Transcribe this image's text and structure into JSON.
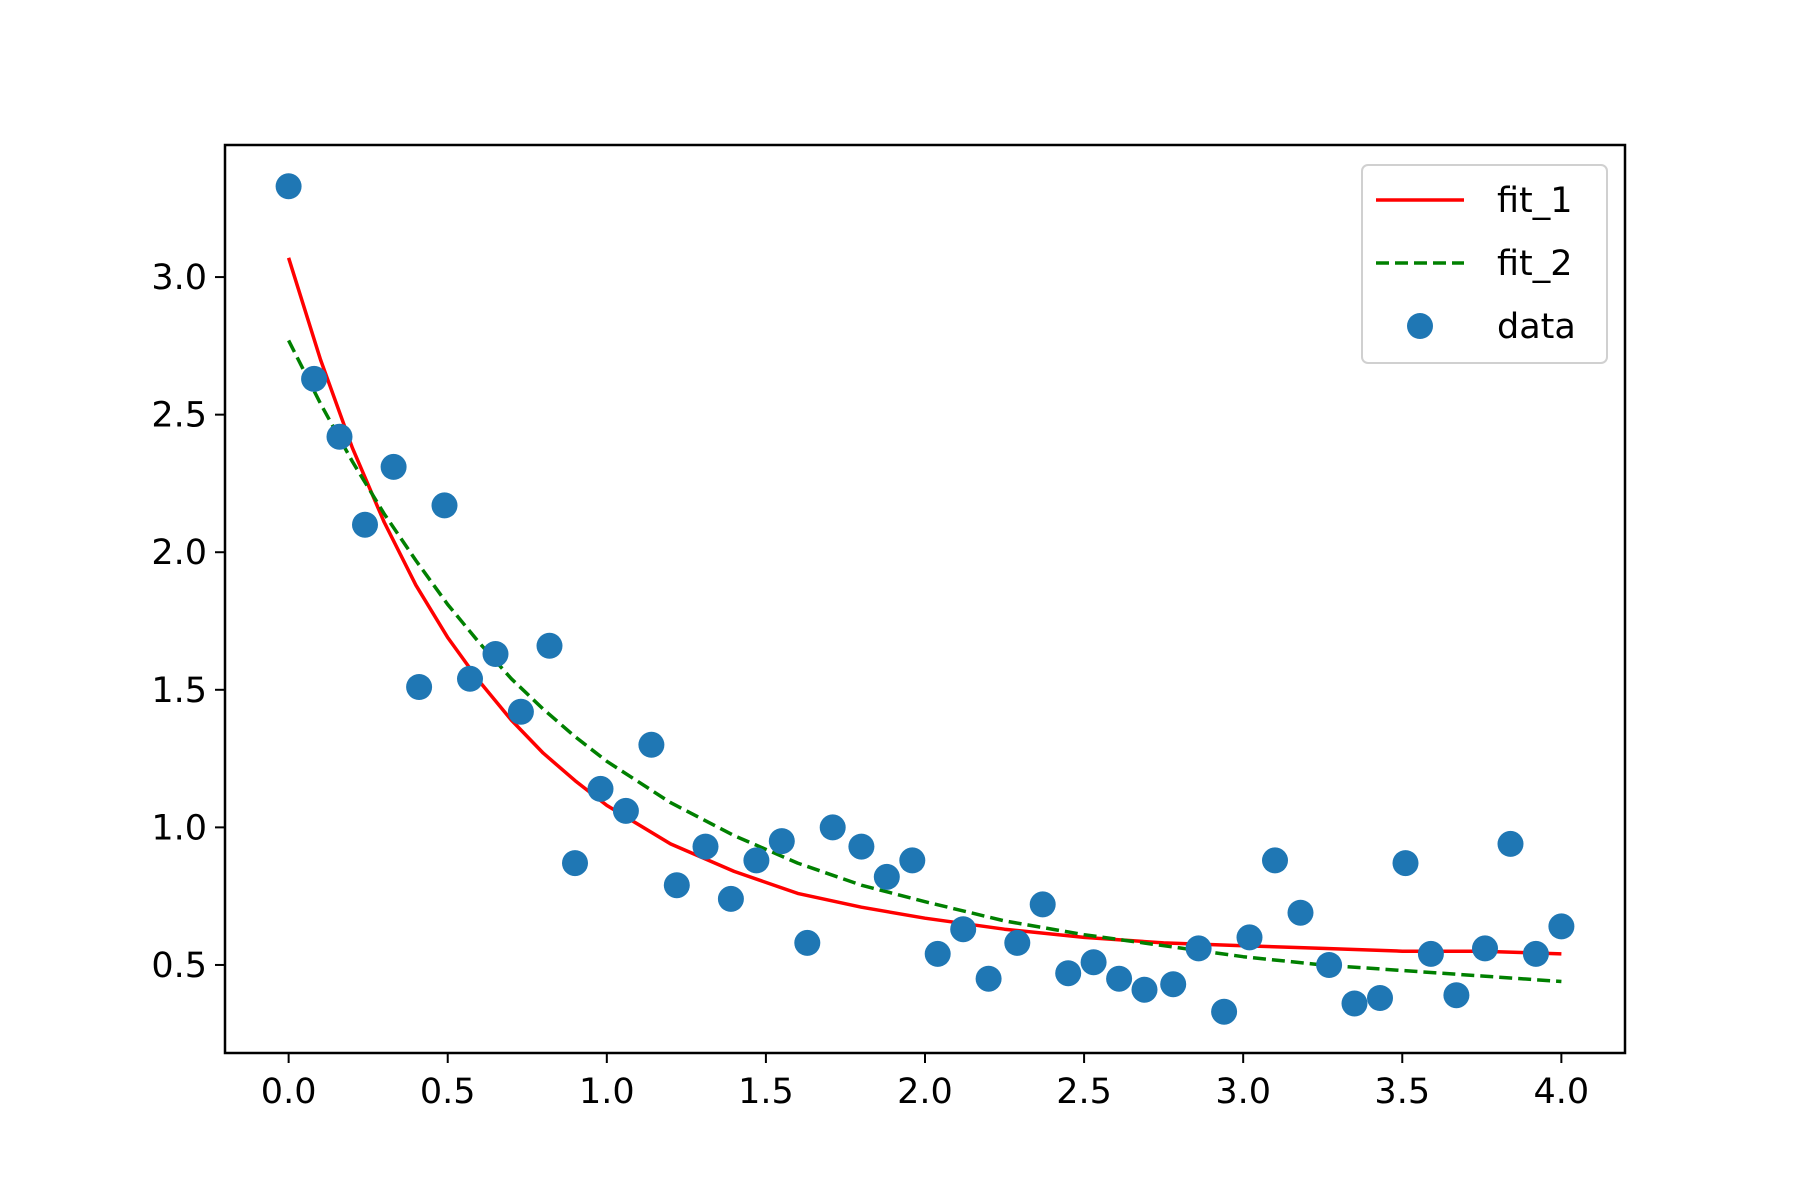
{
  "chart_data": {
    "type": "scatter",
    "title": "",
    "xlabel": "",
    "ylabel": "",
    "xlim": [
      -0.2,
      4.2
    ],
    "ylim": [
      0.18,
      3.48
    ],
    "grid": false,
    "legend_placement": "top-right",
    "x_ticks": [
      "0.0",
      "0.5",
      "1.0",
      "1.5",
      "2.0",
      "2.5",
      "3.0",
      "3.5",
      "4.0"
    ],
    "y_ticks": [
      "0.5",
      "1.0",
      "1.5",
      "2.0",
      "2.5",
      "3.0"
    ],
    "series": [
      {
        "name": "fit_1",
        "kind": "line",
        "style": "solid",
        "color": "#ff0000",
        "x": [
          0.0,
          0.1,
          0.2,
          0.3,
          0.4,
          0.5,
          0.6,
          0.7,
          0.8,
          0.9,
          1.0,
          1.2,
          1.4,
          1.6,
          1.8,
          2.0,
          2.25,
          2.5,
          2.75,
          3.0,
          3.25,
          3.5,
          3.75,
          4.0
        ],
        "y": [
          3.07,
          2.7,
          2.38,
          2.11,
          1.88,
          1.69,
          1.53,
          1.39,
          1.27,
          1.17,
          1.08,
          0.94,
          0.84,
          0.76,
          0.71,
          0.67,
          0.63,
          0.6,
          0.58,
          0.57,
          0.56,
          0.55,
          0.55,
          0.54
        ]
      },
      {
        "name": "fit_2",
        "kind": "line",
        "style": "dashed",
        "color": "#008000",
        "x": [
          0.0,
          0.1,
          0.2,
          0.3,
          0.4,
          0.5,
          0.6,
          0.7,
          0.8,
          0.9,
          1.0,
          1.2,
          1.4,
          1.6,
          1.8,
          2.0,
          2.25,
          2.5,
          2.75,
          3.0,
          3.25,
          3.5,
          3.75,
          4.0
        ],
        "y": [
          2.77,
          2.54,
          2.33,
          2.14,
          1.97,
          1.81,
          1.67,
          1.54,
          1.43,
          1.33,
          1.24,
          1.09,
          0.97,
          0.87,
          0.79,
          0.73,
          0.66,
          0.61,
          0.57,
          0.53,
          0.5,
          0.48,
          0.46,
          0.44
        ]
      },
      {
        "name": "data",
        "kind": "scatter",
        "color": "#1f77b4",
        "x": [
          0.0,
          0.08,
          0.16,
          0.24,
          0.33,
          0.41,
          0.49,
          0.57,
          0.65,
          0.73,
          0.82,
          0.9,
          0.98,
          1.06,
          1.14,
          1.22,
          1.31,
          1.39,
          1.47,
          1.55,
          1.63,
          1.71,
          1.8,
          1.88,
          1.96,
          2.04,
          2.12,
          2.2,
          2.29,
          2.37,
          2.45,
          2.53,
          2.61,
          2.69,
          2.78,
          2.86,
          2.94,
          3.02,
          3.1,
          3.18,
          3.27,
          3.35,
          3.43,
          3.51,
          3.59,
          3.67,
          3.76,
          3.84,
          3.92,
          4.0
        ],
        "y": [
          3.33,
          2.63,
          2.42,
          2.1,
          2.31,
          1.51,
          2.17,
          1.54,
          1.63,
          1.42,
          1.66,
          0.87,
          1.14,
          1.06,
          1.3,
          0.79,
          0.93,
          0.74,
          0.88,
          0.95,
          0.58,
          1.0,
          0.93,
          0.82,
          0.88,
          0.54,
          0.63,
          0.45,
          0.58,
          0.72,
          0.47,
          0.51,
          0.45,
          0.41,
          0.43,
          0.56,
          0.33,
          0.6,
          0.88,
          0.69,
          0.5,
          0.36,
          0.38,
          0.87,
          0.54,
          0.39,
          0.56,
          0.94,
          0.54,
          0.64
        ]
      }
    ]
  }
}
